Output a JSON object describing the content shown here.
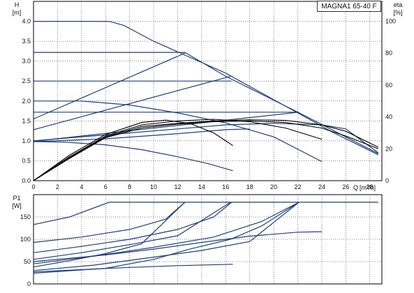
{
  "title": "MAGNA1 65-40 F",
  "colors": {
    "curve": "#1f3f7a",
    "eff": "#000000",
    "grid": "#000000"
  },
  "chart_data": [
    {
      "type": "line",
      "ylabel": "H",
      "yunit": "[m]",
      "y2label": "eta",
      "y2unit": "[%]",
      "xlabel": "Q",
      "xunit": "[m³/h]",
      "xlim": [
        0,
        29
      ],
      "ylim": [
        0,
        4.5
      ],
      "y2lim": [
        0,
        112.5
      ],
      "grid": true,
      "x_ticks": [
        0,
        2,
        4,
        6,
        8,
        10,
        12,
        14,
        16,
        18,
        20,
        22,
        24,
        26,
        28
      ],
      "y_ticks": [
        0.0,
        0.5,
        1.0,
        1.5,
        2.0,
        2.5,
        3.0,
        3.5,
        4.0
      ],
      "y2_ticks": [
        0,
        20,
        40,
        60,
        80,
        100
      ],
      "series": [
        {
          "points": [
            [
              0,
              4.0
            ],
            [
              6.3,
              4.0
            ],
            [
              7.5,
              3.9
            ],
            [
              10,
              3.5
            ],
            [
              13,
              3.1
            ],
            [
              16,
              2.7
            ],
            [
              19,
              2.2
            ],
            [
              22,
              1.7
            ],
            [
              25,
              1.2
            ],
            [
              28.7,
              0.65
            ]
          ]
        },
        {
          "points": [
            [
              0,
              3.22
            ],
            [
              12.6,
              3.22
            ],
            [
              16,
              2.62
            ],
            [
              22,
              1.72
            ],
            [
              28.7,
              0.68
            ]
          ]
        },
        {
          "points": [
            [
              0,
              2.5
            ],
            [
              16.5,
              2.5
            ]
          ]
        },
        {
          "points": [
            [
              0,
              1.72
            ],
            [
              22.1,
              1.72
            ]
          ]
        },
        {
          "points": [
            [
              0,
              1.55
            ],
            [
              12.6,
              3.2
            ]
          ]
        },
        {
          "points": [
            [
              0,
              1.28
            ],
            [
              16.4,
              2.62
            ]
          ]
        },
        {
          "points": [
            [
              0,
              0.99
            ],
            [
              22.1,
              1.72
            ]
          ]
        },
        {
          "points": [
            [
              0,
              2.0
            ],
            [
              4,
              2.0
            ],
            [
              8,
              1.9
            ],
            [
              12,
              1.7
            ],
            [
              16,
              1.45
            ],
            [
              20,
              1.1
            ],
            [
              24,
              0.48
            ]
          ]
        },
        {
          "points": [
            [
              0,
              0.98
            ],
            [
              2.5,
              0.97
            ],
            [
              6,
              0.9
            ],
            [
              9,
              0.78
            ],
            [
              12,
              0.6
            ],
            [
              14.5,
              0.43
            ],
            [
              16.6,
              0.25
            ]
          ]
        },
        {
          "points": [
            [
              0,
              1.0
            ],
            [
              4,
              1.1
            ],
            [
              8,
              1.2
            ],
            [
              12,
              1.3
            ],
            [
              16,
              1.4
            ],
            [
              20,
              1.44
            ],
            [
              24,
              1.4
            ],
            [
              26,
              1.3
            ],
            [
              28.7,
              0.7
            ]
          ]
        },
        {
          "points": [
            [
              0,
              0.98
            ],
            [
              6,
              1.05
            ],
            [
              12,
              1.18
            ],
            [
              16,
              1.28
            ],
            [
              18,
              1.3
            ]
          ]
        }
      ],
      "efficiency_series": [
        {
          "points": [
            [
              0,
              0
            ],
            [
              3,
              16
            ],
            [
              6,
              29
            ],
            [
              9,
              36.5
            ],
            [
              11,
              38
            ],
            [
              13,
              36
            ],
            [
              15,
              30
            ],
            [
              16.6,
              22
            ]
          ]
        },
        {
          "points": [
            [
              0,
              0
            ],
            [
              3,
              15
            ],
            [
              6,
              28
            ],
            [
              9,
              35
            ],
            [
              12,
              37.5
            ],
            [
              15,
              38.5
            ],
            [
              18,
              37
            ],
            [
              21,
              33
            ],
            [
              24,
              26
            ]
          ]
        },
        {
          "points": [
            [
              0,
              0
            ],
            [
              3,
              14
            ],
            [
              6,
              27
            ],
            [
              9,
              33
            ],
            [
              12,
              35.5
            ],
            [
              15,
              37
            ],
            [
              18,
              37.5
            ],
            [
              21,
              36.5
            ],
            [
              24,
              33
            ],
            [
              26,
              28
            ],
            [
              28.7,
              20
            ]
          ]
        },
        {
          "points": [
            [
              0,
              0
            ],
            [
              3,
              14.5
            ],
            [
              6,
              27.5
            ],
            [
              9,
              34
            ],
            [
              12,
              36
            ],
            [
              15,
              37.5
            ],
            [
              18,
              38.2
            ],
            [
              21,
              37.8
            ],
            [
              24,
              35
            ],
            [
              26,
              31
            ],
            [
              28.7,
              21
            ]
          ]
        }
      ]
    },
    {
      "type": "line",
      "ylabel": "P1",
      "yunit": "[W]",
      "xlim": [
        0,
        29
      ],
      "ylim": [
        0,
        200
      ],
      "grid": true,
      "y_ticks": [
        0,
        50,
        100,
        150
      ],
      "series": [
        {
          "points": [
            [
              0,
              133
            ],
            [
              3,
              150
            ],
            [
              6.3,
              183
            ],
            [
              28.7,
              183
            ]
          ]
        },
        {
          "points": [
            [
              0,
              93
            ],
            [
              4,
              105
            ],
            [
              8,
              122
            ],
            [
              11,
              145
            ],
            [
              12.6,
              183
            ]
          ]
        },
        {
          "points": [
            [
              0,
              70
            ],
            [
              4,
              84
            ],
            [
              8,
              100
            ],
            [
              12,
              122
            ],
            [
              15,
              150
            ],
            [
              16.5,
              183
            ]
          ]
        },
        {
          "points": [
            [
              0,
              45
            ],
            [
              5,
              62
            ],
            [
              10,
              82
            ],
            [
              15,
              105
            ],
            [
              19,
              140
            ],
            [
              22.1,
              183
            ]
          ]
        },
        {
          "points": [
            [
              0,
              55
            ],
            [
              4,
              70
            ],
            [
              8,
              88
            ],
            [
              12,
              108
            ],
            [
              16.4,
              183
            ]
          ]
        },
        {
          "points": [
            [
              0,
              38
            ],
            [
              3,
              52
            ],
            [
              6,
              68
            ],
            [
              9,
              90
            ],
            [
              12.6,
              183
            ]
          ]
        },
        {
          "points": [
            [
              0,
              50
            ],
            [
              6,
              65
            ],
            [
              10,
              78
            ],
            [
              14,
              93
            ],
            [
              18,
              107
            ],
            [
              22,
              116
            ],
            [
              24,
              117
            ]
          ]
        },
        {
          "points": [
            [
              0,
              30
            ],
            [
              5,
              42
            ],
            [
              10,
              60
            ],
            [
              14,
              75
            ],
            [
              18,
              95
            ],
            [
              22.1,
              183
            ]
          ]
        },
        {
          "points": [
            [
              0,
              27
            ],
            [
              4,
              32
            ],
            [
              8,
              37
            ],
            [
              12,
              41
            ],
            [
              16.6,
              44
            ]
          ]
        },
        {
          "points": [
            [
              0,
              24
            ],
            [
              6,
              35
            ],
            [
              10,
              55
            ],
            [
              13,
              78
            ],
            [
              16.4,
              100
            ],
            [
              19,
              130
            ],
            [
              22.1,
              183
            ]
          ]
        }
      ]
    }
  ]
}
